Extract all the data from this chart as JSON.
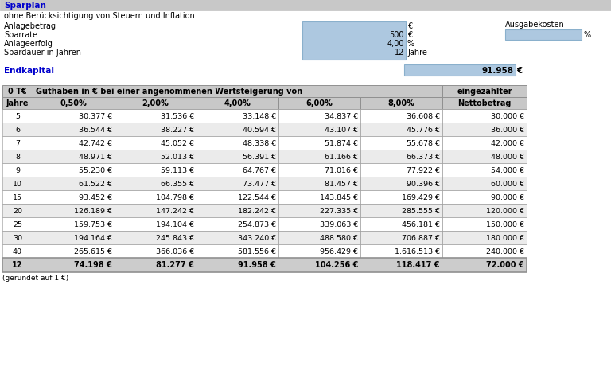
{
  "title": "Sparplan",
  "subtitle": "ohne Berücksichtigung von Steuern und Inflation",
  "labels_left": [
    "Anlagebetrag",
    "Sparrate",
    "Anlageerfolg",
    "Spardauer in Jahren"
  ],
  "values_center": [
    "",
    "500",
    "4,00",
    "12"
  ],
  "units_center": [
    "€",
    "€",
    "%",
    "Jahre"
  ],
  "ausgabekosten_label": "Ausgabekosten",
  "ausgabekosten_unit": "%",
  "endkapital_label": "Endkapital",
  "endkapital_value": "91.958",
  "endkapital_unit": "€",
  "table_header1": "0 T€",
  "table_header2": "Guthaben in € bei einer angenommenen Wertsteigerung von",
  "table_header3": "eingezahlter",
  "table_col1": "Jahre",
  "table_cols": [
    "0,50%",
    "2,00%",
    "4,00%",
    "6,00%",
    "8,00%"
  ],
  "table_col_last": "Nettobetrag",
  "table_rows": [
    [
      "5",
      "30.377 €",
      "31.536 €",
      "33.148 €",
      "34.837 €",
      "36.608 €",
      "30.000 €"
    ],
    [
      "6",
      "36.544 €",
      "38.227 €",
      "40.594 €",
      "43.107 €",
      "45.776 €",
      "36.000 €"
    ],
    [
      "7",
      "42.742 €",
      "45.052 €",
      "48.338 €",
      "51.874 €",
      "55.678 €",
      "42.000 €"
    ],
    [
      "8",
      "48.971 €",
      "52.013 €",
      "56.391 €",
      "61.166 €",
      "66.373 €",
      "48.000 €"
    ],
    [
      "9",
      "55.230 €",
      "59.113 €",
      "64.767 €",
      "71.016 €",
      "77.922 €",
      "54.000 €"
    ],
    [
      "10",
      "61.522 €",
      "66.355 €",
      "73.477 €",
      "81.457 €",
      "90.396 €",
      "60.000 €"
    ],
    [
      "15",
      "93.452 €",
      "104.798 €",
      "122.544 €",
      "143.845 €",
      "169.429 €",
      "90.000 €"
    ],
    [
      "20",
      "126.189 €",
      "147.242 €",
      "182.242 €",
      "227.335 €",
      "285.555 €",
      "120.000 €"
    ],
    [
      "25",
      "159.753 €",
      "194.104 €",
      "254.873 €",
      "339.063 €",
      "456.181 €",
      "150.000 €"
    ],
    [
      "30",
      "194.164 €",
      "245.843 €",
      "343.240 €",
      "488.580 €",
      "706.887 €",
      "180.000 €"
    ],
    [
      "40",
      "265.615 €",
      "366.036 €",
      "581.556 €",
      "956.429 €",
      "1.616.513 €",
      "240.000 €"
    ]
  ],
  "table_footer": [
    "12",
    "74.198 €",
    "81.277 €",
    "91.958 €",
    "104.256 €",
    "118.417 €",
    "72.000 €"
  ],
  "table_note": "(gerundet auf 1 €)",
  "color_header_bg": "#c8c8c8",
  "color_blue_box": "#adc8e0",
  "color_blue_box_dark": "#8ab0cc",
  "color_header_text": "#0000cc",
  "color_table_border": "#909090",
  "color_row_alt": "#ebebeb",
  "color_white": "#ffffff",
  "color_footer_bg": "#cccccc",
  "color_black": "#000000",
  "color_dark_text": "#222222"
}
